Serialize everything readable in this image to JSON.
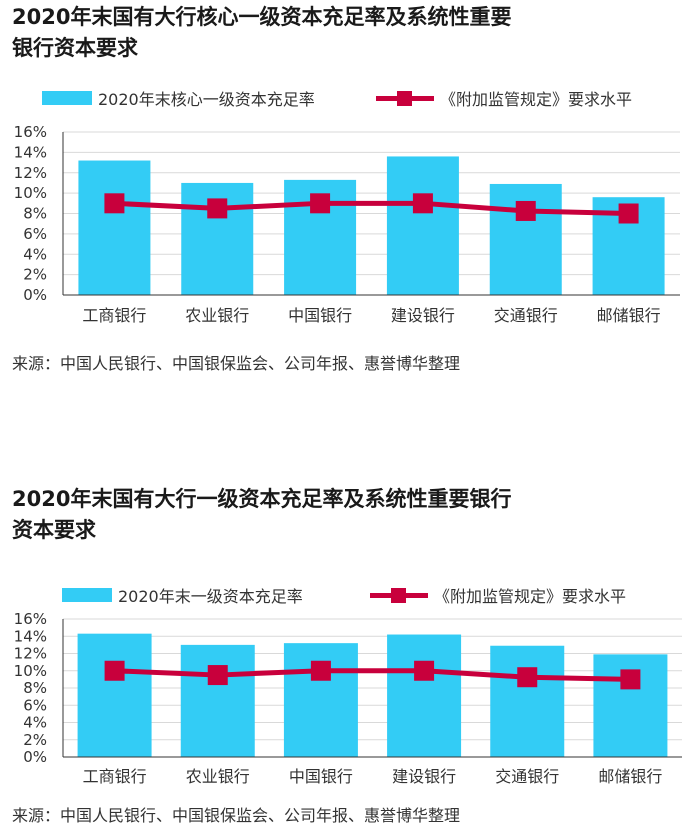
{
  "colors": {
    "bar": "#33ccf5",
    "line": "#c8003c",
    "grid": "#d9d9d9",
    "axis": "#333333"
  },
  "chart_data": [
    {
      "type": "bar",
      "title": "2020年末国有大行核心一级资本充足率及系统性重要银行资本要求",
      "title_line1": "2020年末国有大行核心一级资本充足率及系统性重要",
      "title_line2": "银行资本要求",
      "categories": [
        "工商银行",
        "农业银行",
        "中国银行",
        "建设银行",
        "交通银行",
        "邮储银行"
      ],
      "yticks": [
        "0%",
        "2%",
        "4%",
        "6%",
        "8%",
        "10%",
        "12%",
        "14%",
        "16%"
      ],
      "ylim": [
        0,
        16
      ],
      "grid": true,
      "legend_position": "top",
      "series": [
        {
          "name": "2020年末核心一级资本充足率",
          "kind": "bar",
          "values": [
            13.2,
            11.0,
            11.3,
            13.6,
            10.9,
            9.6
          ]
        },
        {
          "name": "《附加监管规定》要求水平",
          "kind": "line",
          "values": [
            9.0,
            8.5,
            9.0,
            9.0,
            8.25,
            8.0
          ]
        }
      ],
      "source": "来源：中国人民银行、中国银保监会、公司年报、惠誉博华整理"
    },
    {
      "type": "bar",
      "title": "2020年末国有大行一级资本充足率及系统性重要银行资本要求",
      "title_line1": "2020年末国有大行一级资本充足率及系统性重要银行",
      "title_line2": "资本要求",
      "categories": [
        "工商银行",
        "农业银行",
        "中国银行",
        "建设银行",
        "交通银行",
        "邮储银行"
      ],
      "yticks": [
        "0%",
        "2%",
        "4%",
        "6%",
        "8%",
        "10%",
        "12%",
        "14%",
        "16%"
      ],
      "ylim": [
        0,
        16
      ],
      "grid": true,
      "legend_position": "top",
      "series": [
        {
          "name": "2020年末一级资本充足率",
          "kind": "bar",
          "values": [
            14.3,
            13.0,
            13.2,
            14.2,
            12.9,
            11.9
          ]
        },
        {
          "name": "《附加监管规定》要求水平",
          "kind": "line",
          "values": [
            10.0,
            9.5,
            10.0,
            10.0,
            9.25,
            9.0
          ]
        }
      ],
      "source": "来源：中国人民银行、中国银保监会、公司年报、惠誉博华整理"
    }
  ]
}
